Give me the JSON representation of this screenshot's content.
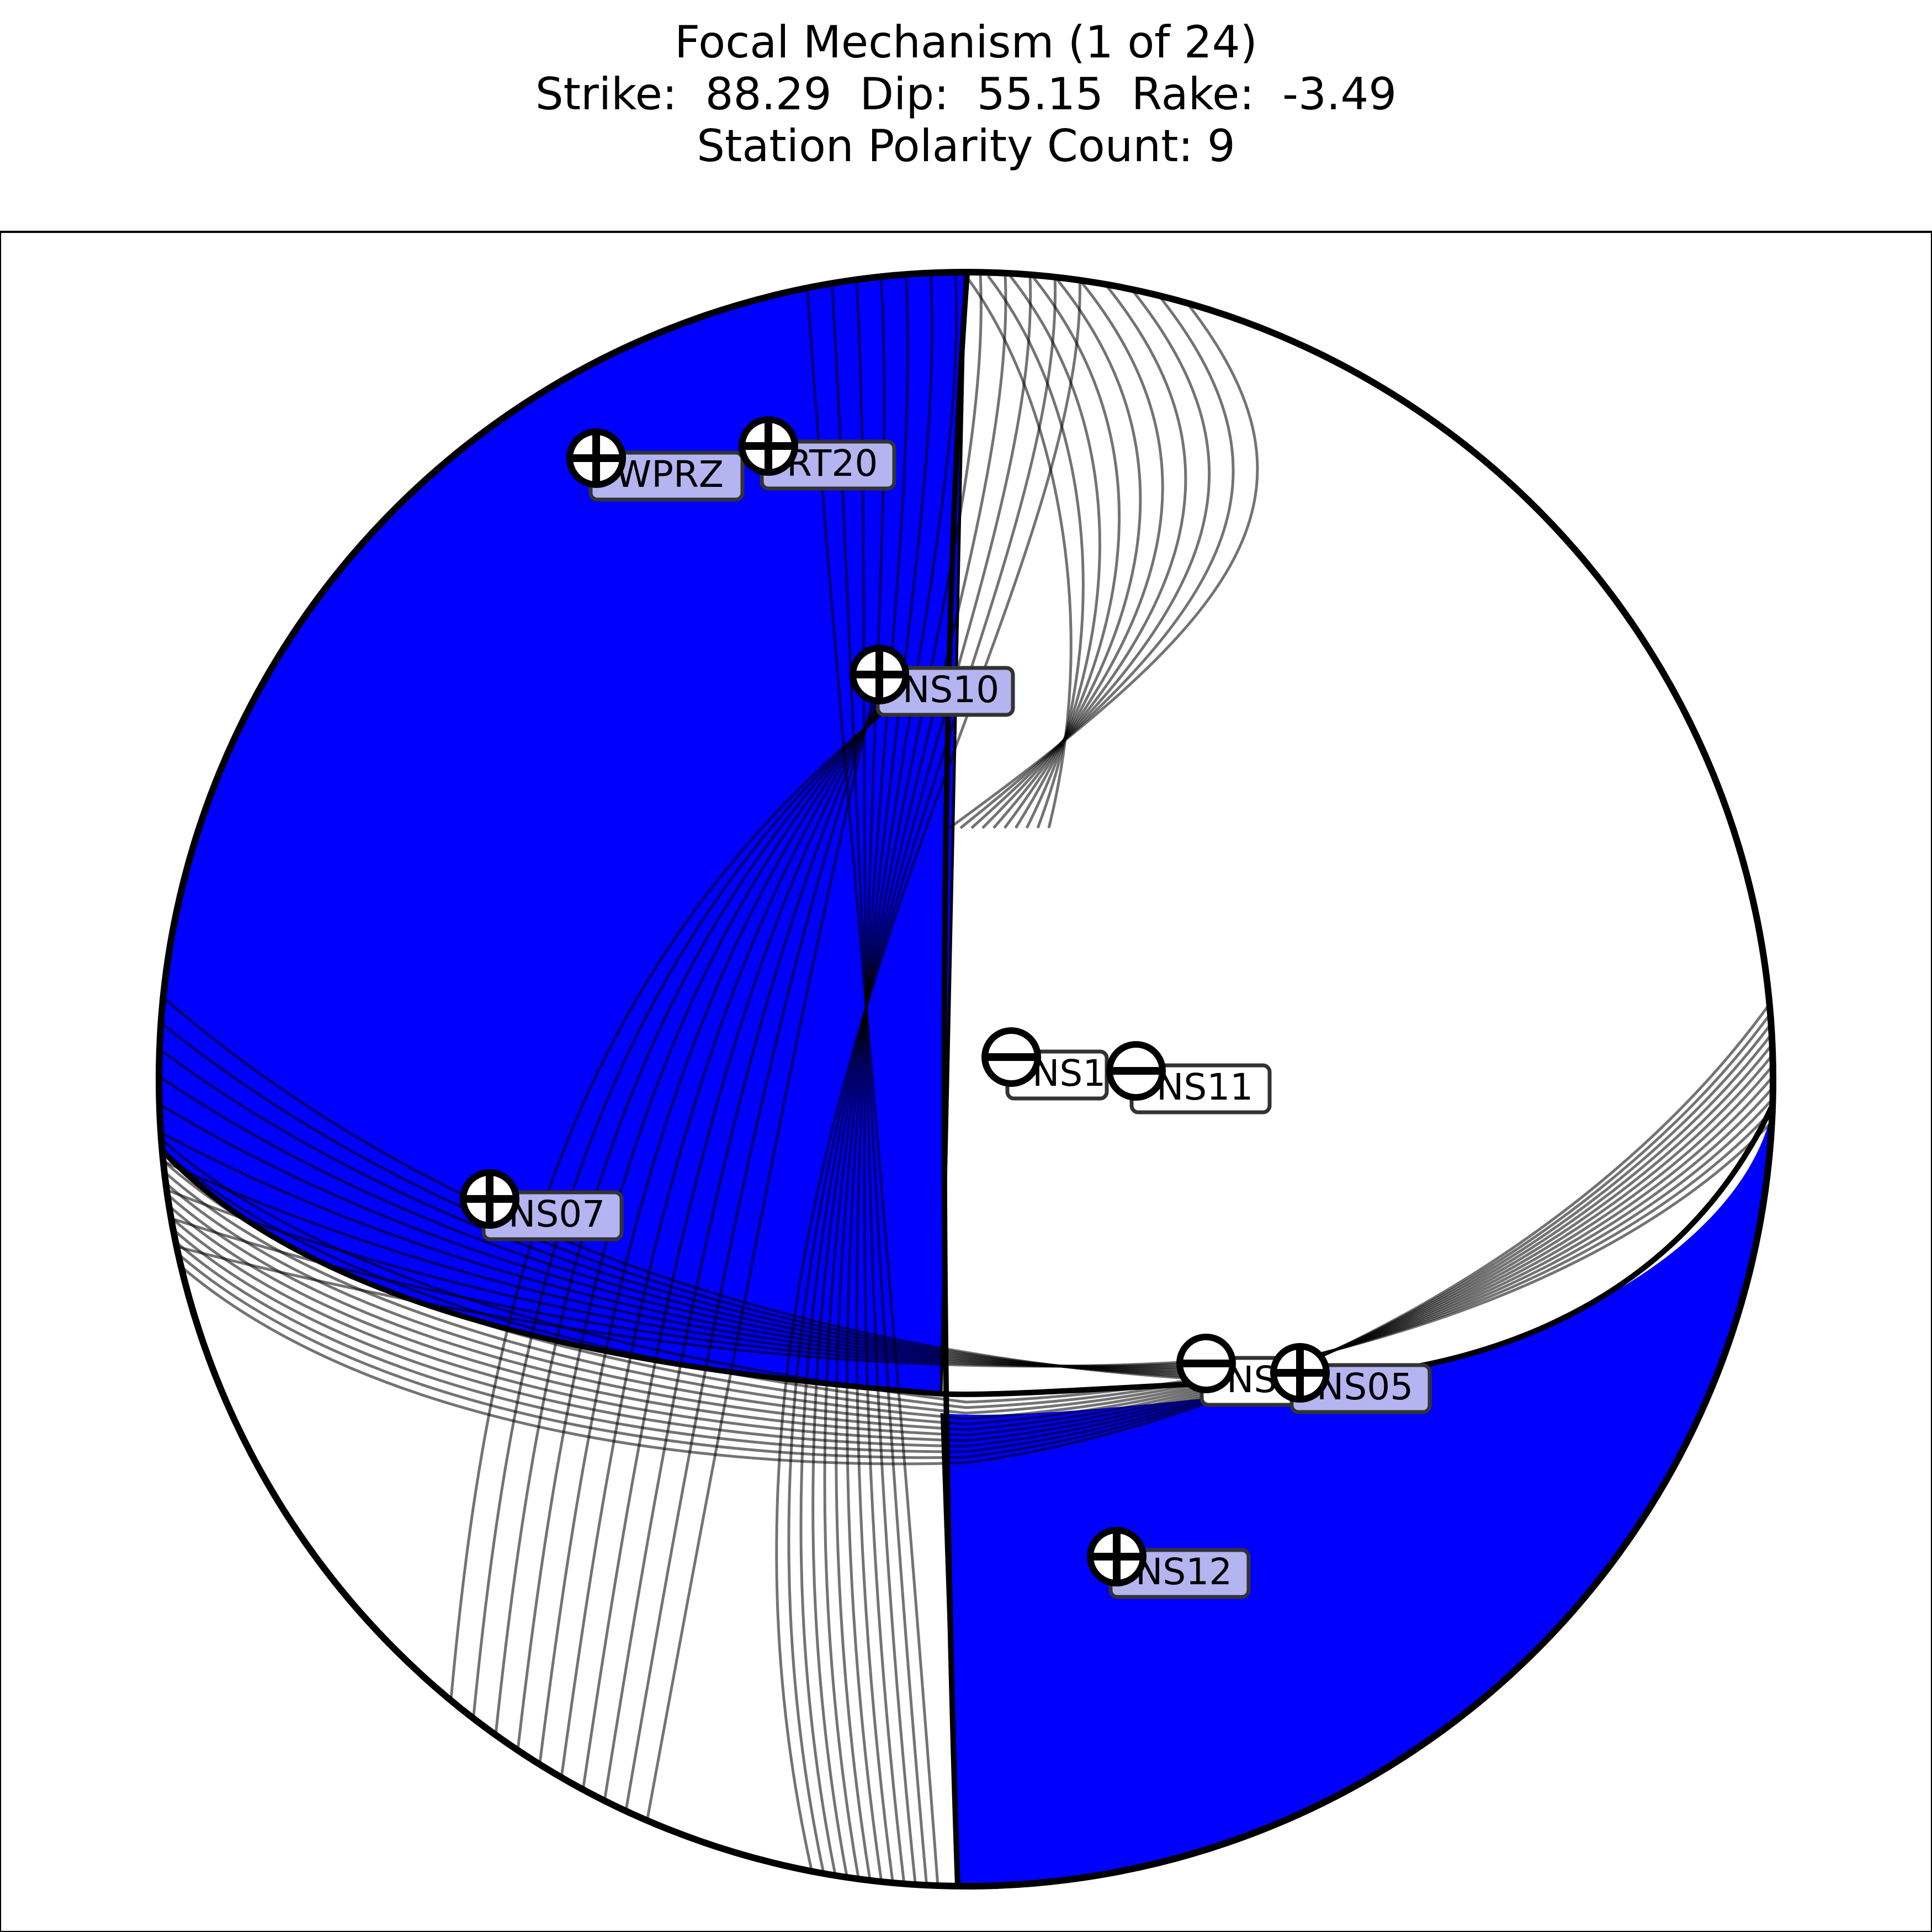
{
  "header": {
    "title": "Focal Mechanism (1 of 24)",
    "parameters": "Strike:  88.29  Dip:  55.15  Rake:  -3.49",
    "polarity_count": "Station Polarity Count: 9"
  },
  "mechanism": {
    "strike": 88.29,
    "dip": 55.15,
    "rake": -3.49,
    "solutions_shown": 24
  },
  "colors": {
    "compressional_fill": "#0000ff",
    "dilatational_fill": "#ffffff",
    "outline": "#000000",
    "label_box_positive": "#b4b4f0",
    "label_box_negative": "#ffffff",
    "alternate_planes": "#000000"
  },
  "stations": [
    {
      "name": "WPRZ",
      "polarity": "+",
      "shown_label": "WPRZ"
    },
    {
      "name": "RT20",
      "polarity": "+",
      "shown_label": "RT20"
    },
    {
      "name": "NS10",
      "polarity": "+",
      "shown_label": "NS10"
    },
    {
      "name": "NS1",
      "polarity": "-",
      "shown_label": "NS1"
    },
    {
      "name": "NS11",
      "polarity": "-",
      "shown_label": "NS11"
    },
    {
      "name": "NS07",
      "polarity": "+",
      "shown_label": "NS07"
    },
    {
      "name": "NS",
      "polarity": "-",
      "shown_label": "NS"
    },
    {
      "name": "NS05",
      "polarity": "+",
      "shown_label": "NS05"
    },
    {
      "name": "NS12",
      "polarity": "+",
      "shown_label": "NS12"
    }
  ]
}
